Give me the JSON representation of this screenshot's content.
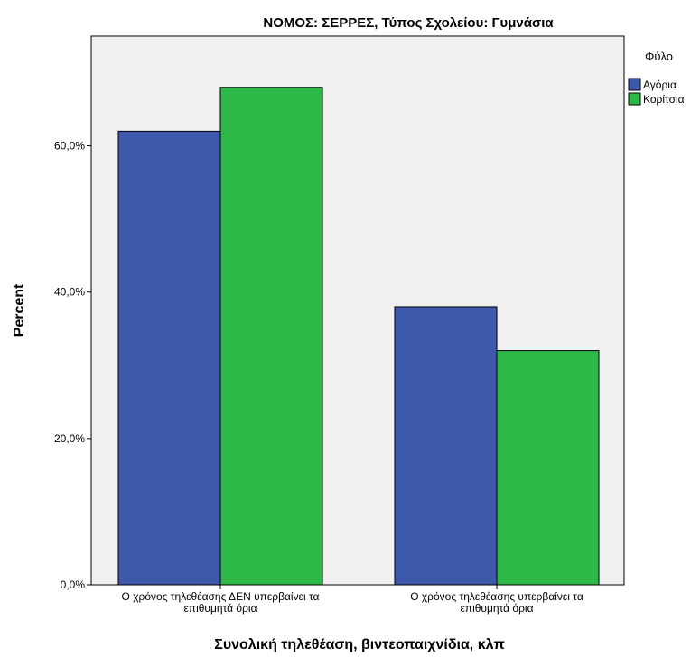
{
  "chart_data": {
    "type": "bar",
    "title": "ΝΟΜΟΣ: ΣΕΡΡΕΣ, Τύπος Σχολείου: Γυμνάσια",
    "xlabel": "Συνολική τηλεθέαση, βιντεοπαιχνίδια, κλπ",
    "ylabel": "Percent",
    "ylim": [
      0,
      75
    ],
    "yticks": [
      0,
      20,
      40,
      60
    ],
    "ytick_labels": [
      "0,0%",
      "20,0%",
      "40,0%",
      "60,0%"
    ],
    "categories": [
      [
        "Ο χρόνος τηλεθέασης ΔΕΝ υπερβαίνει τα",
        "επιθυμητά όρια"
      ],
      [
        "Ο χρόνος τηλεθέασης υπερβαίνει τα",
        "επιθυμητά όρια"
      ]
    ],
    "legend_title": "Φύλο",
    "legend_position": "right",
    "grid": false,
    "plot_background": "#f0f0f0",
    "series": [
      {
        "name": "Αγόρια",
        "color": "#3e58ac",
        "values": [
          62,
          38
        ]
      },
      {
        "name": "Κορίτσια",
        "color": "#2eb848",
        "values": [
          68,
          32
        ]
      }
    ]
  }
}
